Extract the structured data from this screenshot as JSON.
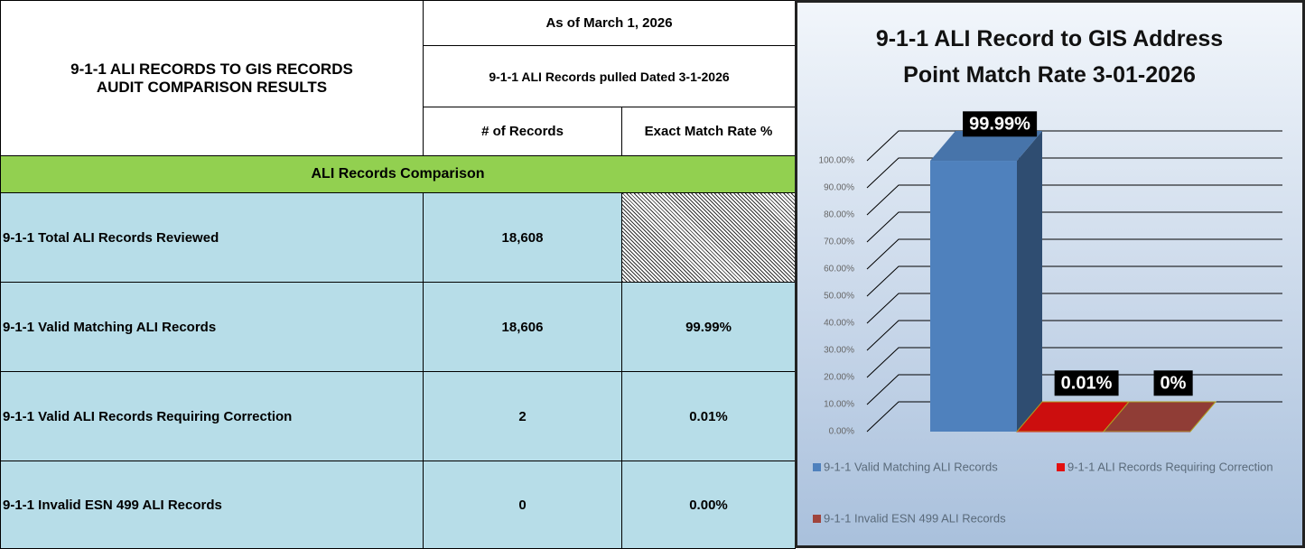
{
  "table": {
    "title": "9-1-1 ALI RECORDS TO GIS RECORDS AUDIT COMPARISON RESULTS",
    "as_of": "As of March 1, 2026",
    "pulled": "9-1-1 ALI Records pulled Dated 3-1-2026",
    "columns": [
      "# of Records",
      "Exact Match Rate %"
    ],
    "section": "ALI Records Comparison",
    "rows": [
      [
        "9-1-1 Total ALI Records Reviewed",
        "18,608",
        null
      ],
      [
        "9-1-1 Valid Matching ALI Records",
        "18,606",
        "99.99%"
      ],
      [
        "9-1-1 Valid ALI Records Requiring Correction",
        "2",
        "0.01%"
      ],
      [
        "9-1-1 Invalid ESN 499 ALI Records",
        "0",
        "0.00%"
      ]
    ]
  },
  "chart_data": {
    "type": "bar3d",
    "title": "9-1-1 ALI Record to GIS Address Point Match Rate 3-01-2026",
    "series": [
      {
        "name": "9-1-1 Valid Matching ALI Records",
        "color": "#4f81bd",
        "values": [
          99.99
        ],
        "value_labels": [
          "99.99%"
        ]
      },
      {
        "name": "9-1-1  ALI Records Requiring Correction",
        "color": "#e31010",
        "values": [
          0.01
        ],
        "value_labels": [
          "0.01%"
        ]
      },
      {
        "name": "9-1-1 Invalid ESN 499 ALI Records",
        "color": "#a0443c",
        "values": [
          0
        ],
        "value_labels": [
          "0%"
        ]
      }
    ],
    "ylim": [
      0,
      100
    ],
    "yticks": [
      {
        "value": 0,
        "label": "0.00%"
      },
      {
        "value": 10,
        "label": "10.00%"
      },
      {
        "value": 20,
        "label": "20.00%"
      },
      {
        "value": 30,
        "label": "30.00%"
      },
      {
        "value": 40,
        "label": "40.00%"
      },
      {
        "value": 50,
        "label": "50.00%"
      },
      {
        "value": 60,
        "label": "60.00%"
      },
      {
        "value": 70,
        "label": "70.00%"
      },
      {
        "value": 80,
        "label": "80.00%"
      },
      {
        "value": 90,
        "label": "90.00%"
      },
      {
        "value": 100,
        "label": "100.00%"
      }
    ],
    "grid": true
  }
}
